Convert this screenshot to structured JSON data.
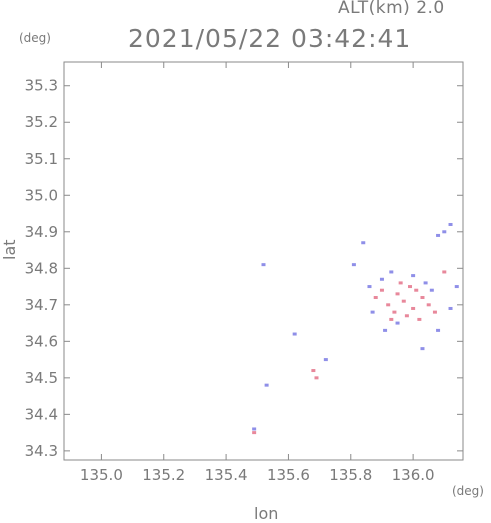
{
  "header": {
    "altitude_label": "ALT(km) 2.0",
    "timestamp": "2021/05/22 03:42:41"
  },
  "axes": {
    "x_label": "lon",
    "y_label": "lat",
    "x_unit": "(deg)",
    "y_unit": "(deg)"
  },
  "colors": {
    "axis": "#8a8a8a",
    "text": "#7a7a7a",
    "positive": "#e0607a",
    "negative": "#6a6ae0"
  },
  "chart_data": {
    "type": "scatter",
    "title": "",
    "xlabel": "lon",
    "ylabel": "lat",
    "xlim": [
      134.88,
      136.16
    ],
    "ylim": [
      34.275,
      35.365
    ],
    "x_ticks": [
      135.0,
      135.2,
      135.4,
      135.6,
      135.8,
      136.0
    ],
    "y_ticks": [
      34.3,
      34.4,
      34.5,
      34.6,
      34.7,
      34.8,
      34.9,
      35.0,
      35.1,
      35.2,
      35.3
    ],
    "grid": false,
    "legend": "none",
    "series": [
      {
        "color": "#e0607a",
        "points": [
          [
            135.49,
            34.35
          ],
          [
            135.68,
            34.52
          ],
          [
            135.69,
            34.5
          ],
          [
            135.88,
            34.72
          ],
          [
            135.9,
            34.74
          ],
          [
            135.92,
            34.7
          ],
          [
            135.94,
            34.68
          ],
          [
            135.95,
            34.73
          ],
          [
            135.97,
            34.71
          ],
          [
            135.98,
            34.67
          ],
          [
            136.0,
            34.69
          ],
          [
            136.01,
            34.74
          ],
          [
            136.03,
            34.72
          ],
          [
            135.96,
            34.76
          ],
          [
            136.02,
            34.66
          ],
          [
            135.93,
            34.66
          ],
          [
            136.05,
            34.7
          ],
          [
            136.07,
            34.68
          ],
          [
            135.99,
            34.75
          ],
          [
            136.1,
            34.79
          ]
        ]
      },
      {
        "color": "#6a6ae0",
        "points": [
          [
            135.49,
            34.36
          ],
          [
            135.53,
            34.48
          ],
          [
            135.52,
            34.81
          ],
          [
            135.62,
            34.62
          ],
          [
            135.72,
            34.55
          ],
          [
            135.81,
            34.81
          ],
          [
            135.84,
            34.87
          ],
          [
            135.86,
            34.75
          ],
          [
            135.87,
            34.68
          ],
          [
            135.9,
            34.77
          ],
          [
            135.93,
            34.79
          ],
          [
            135.95,
            34.65
          ],
          [
            136.0,
            34.78
          ],
          [
            136.04,
            34.76
          ],
          [
            136.06,
            34.74
          ],
          [
            136.08,
            34.63
          ],
          [
            136.03,
            34.58
          ],
          [
            136.1,
            34.9
          ],
          [
            136.12,
            34.92
          ],
          [
            136.14,
            34.75
          ],
          [
            136.12,
            34.69
          ],
          [
            135.91,
            34.63
          ],
          [
            136.08,
            34.89
          ]
        ]
      }
    ]
  }
}
